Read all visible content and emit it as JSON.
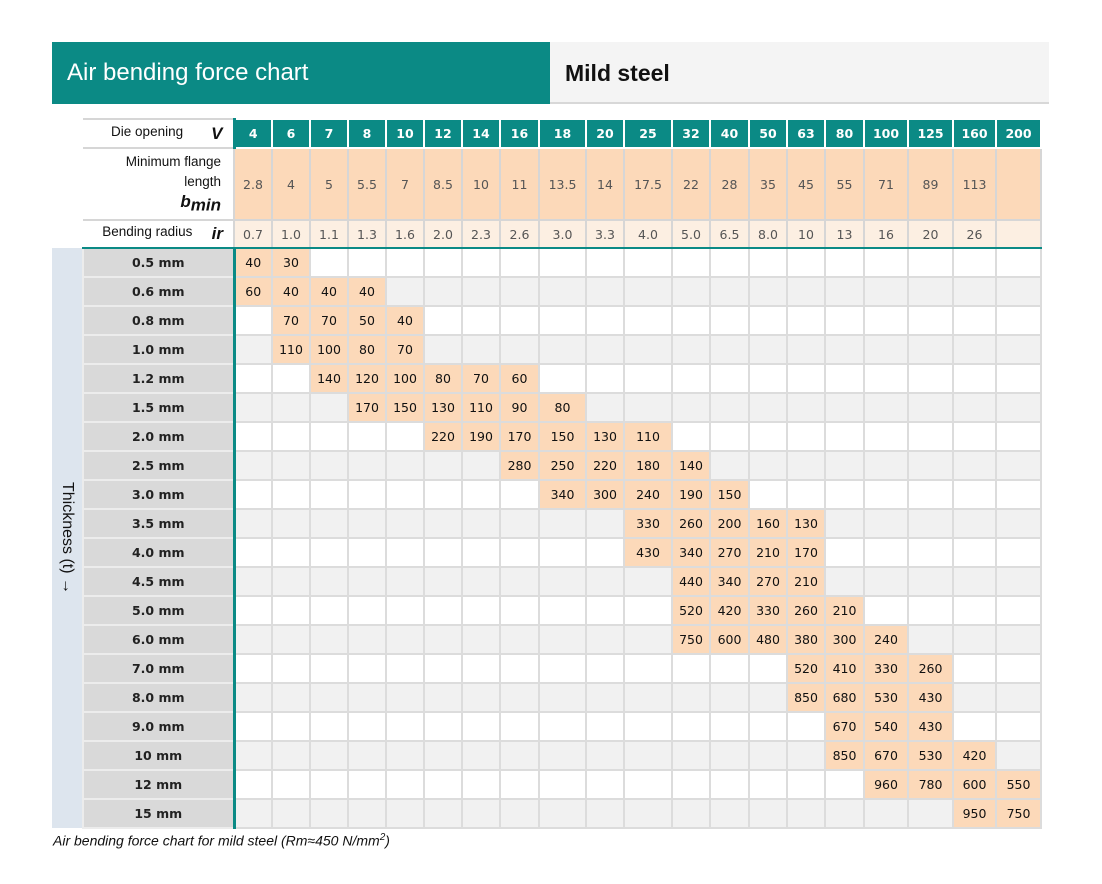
{
  "header": {
    "title": "Air bending force chart",
    "material": "Mild steel"
  },
  "labels": {
    "die_opening": "Die opening",
    "die_opening_symbol": "V",
    "min_flange_line1": "Minimum flange",
    "min_flange_line2": "length",
    "min_flange_symbol": "b",
    "min_flange_sub": "min",
    "bending_radius": "Bending radius",
    "bending_radius_symbol": "ir",
    "thickness_axis": "Thickness (t) →"
  },
  "die_openings": [
    "4",
    "6",
    "7",
    "8",
    "10",
    "12",
    "14",
    "16",
    "18",
    "20",
    "25",
    "32",
    "40",
    "50",
    "63",
    "80",
    "100",
    "125",
    "160",
    "200"
  ],
  "min_flange": [
    "2.8",
    "4",
    "5",
    "5.5",
    "7",
    "8.5",
    "10",
    "11",
    "13.5",
    "14",
    "17.5",
    "22",
    "28",
    "35",
    "45",
    "55",
    "71",
    "89",
    "113",
    ""
  ],
  "bending_radius": [
    "0.7",
    "1.0",
    "1.1",
    "1.3",
    "1.6",
    "2.0",
    "2.3",
    "2.6",
    "3.0",
    "3.3",
    "4.0",
    "5.0",
    "6.5",
    "8.0",
    "10",
    "13",
    "16",
    "20",
    "26",
    ""
  ],
  "rows": [
    {
      "thickness": "0.5 mm",
      "values": [
        "40",
        "30",
        "",
        "",
        "",
        "",
        "",
        "",
        "",
        "",
        "",
        "",
        "",
        "",
        "",
        "",
        "",
        "",
        "",
        ""
      ]
    },
    {
      "thickness": "0.6 mm",
      "values": [
        "60",
        "40",
        "40",
        "40",
        "",
        "",
        "",
        "",
        "",
        "",
        "",
        "",
        "",
        "",
        "",
        "",
        "",
        "",
        "",
        ""
      ]
    },
    {
      "thickness": "0.8 mm",
      "values": [
        "",
        "70",
        "70",
        "50",
        "40",
        "",
        "",
        "",
        "",
        "",
        "",
        "",
        "",
        "",
        "",
        "",
        "",
        "",
        "",
        ""
      ]
    },
    {
      "thickness": "1.0 mm",
      "values": [
        "",
        "110",
        "100",
        "80",
        "70",
        "",
        "",
        "",
        "",
        "",
        "",
        "",
        "",
        "",
        "",
        "",
        "",
        "",
        "",
        ""
      ]
    },
    {
      "thickness": "1.2 mm",
      "values": [
        "",
        "",
        "140",
        "120",
        "100",
        "80",
        "70",
        "60",
        "",
        "",
        "",
        "",
        "",
        "",
        "",
        "",
        "",
        "",
        "",
        ""
      ]
    },
    {
      "thickness": "1.5 mm",
      "values": [
        "",
        "",
        "",
        "170",
        "150",
        "130",
        "110",
        "90",
        "80",
        "",
        "",
        "",
        "",
        "",
        "",
        "",
        "",
        "",
        "",
        ""
      ]
    },
    {
      "thickness": "2.0 mm",
      "values": [
        "",
        "",
        "",
        "",
        "",
        "220",
        "190",
        "170",
        "150",
        "130",
        "110",
        "",
        "",
        "",
        "",
        "",
        "",
        "",
        "",
        ""
      ]
    },
    {
      "thickness": "2.5 mm",
      "values": [
        "",
        "",
        "",
        "",
        "",
        "",
        "",
        "280",
        "250",
        "220",
        "180",
        "140",
        "",
        "",
        "",
        "",
        "",
        "",
        "",
        ""
      ]
    },
    {
      "thickness": "3.0 mm",
      "values": [
        "",
        "",
        "",
        "",
        "",
        "",
        "",
        "",
        "340",
        "300",
        "240",
        "190",
        "150",
        "",
        "",
        "",
        "",
        "",
        "",
        ""
      ]
    },
    {
      "thickness": "3.5 mm",
      "values": [
        "",
        "",
        "",
        "",
        "",
        "",
        "",
        "",
        "",
        "",
        "330",
        "260",
        "200",
        "160",
        "130",
        "",
        "",
        "",
        "",
        ""
      ]
    },
    {
      "thickness": "4.0 mm",
      "values": [
        "",
        "",
        "",
        "",
        "",
        "",
        "",
        "",
        "",
        "",
        "430",
        "340",
        "270",
        "210",
        "170",
        "",
        "",
        "",
        "",
        ""
      ]
    },
    {
      "thickness": "4.5 mm",
      "values": [
        "",
        "",
        "",
        "",
        "",
        "",
        "",
        "",
        "",
        "",
        "",
        "440",
        "340",
        "270",
        "210",
        "",
        "",
        "",
        "",
        ""
      ]
    },
    {
      "thickness": "5.0 mm",
      "values": [
        "",
        "",
        "",
        "",
        "",
        "",
        "",
        "",
        "",
        "",
        "",
        "520",
        "420",
        "330",
        "260",
        "210",
        "",
        "",
        "",
        ""
      ]
    },
    {
      "thickness": "6.0 mm",
      "values": [
        "",
        "",
        "",
        "",
        "",
        "",
        "",
        "",
        "",
        "",
        "",
        "750",
        "600",
        "480",
        "380",
        "300",
        "240",
        "",
        "",
        ""
      ]
    },
    {
      "thickness": "7.0 mm",
      "values": [
        "",
        "",
        "",
        "",
        "",
        "",
        "",
        "",
        "",
        "",
        "",
        "",
        "",
        "",
        "520",
        "410",
        "330",
        "260",
        "",
        ""
      ]
    },
    {
      "thickness": "8.0 mm",
      "values": [
        "",
        "",
        "",
        "",
        "",
        "",
        "",
        "",
        "",
        "",
        "",
        "",
        "",
        "",
        "850",
        "680",
        "530",
        "430",
        "",
        ""
      ]
    },
    {
      "thickness": "9.0 mm",
      "values": [
        "",
        "",
        "",
        "",
        "",
        "",
        "",
        "",
        "",
        "",
        "",
        "",
        "",
        "",
        "",
        "670",
        "540",
        "430",
        "",
        ""
      ]
    },
    {
      "thickness": "10 mm",
      "values": [
        "",
        "",
        "",
        "",
        "",
        "",
        "",
        "",
        "",
        "",
        "",
        "",
        "",
        "",
        "",
        "850",
        "670",
        "530",
        "420",
        ""
      ]
    },
    {
      "thickness": "12 mm",
      "values": [
        "",
        "",
        "",
        "",
        "",
        "",
        "",
        "",
        "",
        "",
        "",
        "",
        "",
        "",
        "",
        "",
        "960",
        "780",
        "600",
        "550"
      ]
    },
    {
      "thickness": "15 mm",
      "values": [
        "",
        "",
        "",
        "",
        "",
        "",
        "",
        "",
        "",
        "",
        "",
        "",
        "",
        "",
        "",
        "",
        "",
        "",
        "950",
        "750"
      ]
    }
  ],
  "caption": {
    "text": "Air bending force chart for mild steel (Rm≈450 N/mm",
    "sup": "2",
    "close": ")"
  }
}
